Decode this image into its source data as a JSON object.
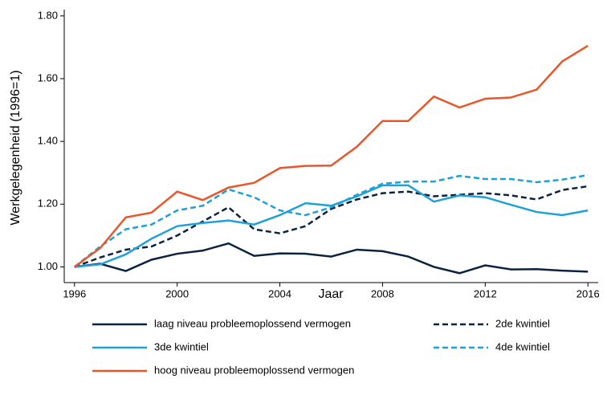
{
  "chart_data": {
    "type": "line",
    "xlabel": "Jaar",
    "ylabel": "Werkgelegenheid (1996=1)",
    "x": [
      1996,
      1997,
      1998,
      1999,
      2000,
      2001,
      2002,
      2003,
      2004,
      2005,
      2006,
      2007,
      2008,
      2009,
      2010,
      2011,
      2012,
      2013,
      2014,
      2015,
      2016
    ],
    "xlim": [
      1995.6,
      2016.4
    ],
    "xticks": [
      1996,
      2000,
      2004,
      2008,
      2012,
      2016
    ],
    "ylim": [
      0.95,
      1.82
    ],
    "yticks": [
      {
        "value": 1.0,
        "label": "1.00"
      },
      {
        "value": 1.2,
        "label": "1.20"
      },
      {
        "value": 1.4,
        "label": "1.40"
      },
      {
        "value": 1.6,
        "label": "1.60"
      },
      {
        "value": 1.8,
        "label": "1.80"
      }
    ],
    "series": [
      {
        "name": "laag niveau probleemoplossend vermogen",
        "color": "#0c2340",
        "dashed": false,
        "values": [
          1.0,
          1.01,
          0.987,
          1.023,
          1.042,
          1.052,
          1.075,
          1.035,
          1.043,
          1.042,
          1.033,
          1.055,
          1.05,
          1.033,
          1.0,
          0.98,
          1.005,
          0.992,
          0.993,
          0.988,
          0.985
        ]
      },
      {
        "name": "2de kwintiel",
        "color": "#0c2340",
        "dashed": true,
        "values": [
          1.0,
          1.03,
          1.055,
          1.065,
          1.1,
          1.145,
          1.19,
          1.12,
          1.107,
          1.13,
          1.185,
          1.215,
          1.235,
          1.24,
          1.225,
          1.23,
          1.235,
          1.228,
          1.215,
          1.245,
          1.257
        ]
      },
      {
        "name": "3de kwintiel",
        "color": "#1fa0d8",
        "dashed": false,
        "values": [
          1.0,
          1.008,
          1.04,
          1.09,
          1.13,
          1.14,
          1.148,
          1.135,
          1.165,
          1.203,
          1.195,
          1.225,
          1.26,
          1.26,
          1.208,
          1.228,
          1.222,
          1.198,
          1.175,
          1.165,
          1.18
        ]
      },
      {
        "name": "4de kwintiel",
        "color": "#1fa0d8",
        "dashed": true,
        "values": [
          1.0,
          1.065,
          1.12,
          1.135,
          1.18,
          1.195,
          1.247,
          1.222,
          1.18,
          1.165,
          1.19,
          1.23,
          1.265,
          1.272,
          1.272,
          1.29,
          1.28,
          1.28,
          1.27,
          1.278,
          1.293
        ]
      },
      {
        "name": "hoog niveau probleemoplossend vermogen",
        "color": "#e8572a",
        "dashed": false,
        "values": [
          1.0,
          1.06,
          1.158,
          1.173,
          1.24,
          1.213,
          1.253,
          1.268,
          1.315,
          1.322,
          1.323,
          1.383,
          1.465,
          1.465,
          1.543,
          1.508,
          1.536,
          1.54,
          1.565,
          1.655,
          1.705
        ]
      }
    ]
  }
}
